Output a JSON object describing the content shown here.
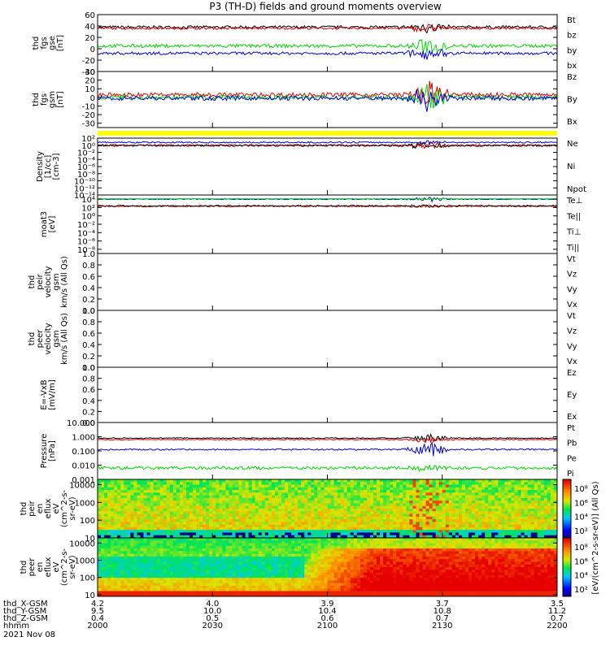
{
  "title": "P3 (TH-D) fields and ground moments overview",
  "colors": {
    "black": "#000000",
    "red": "#e00000",
    "green": "#00d800",
    "blue": "#0000e0",
    "yellow": "#ffff00"
  },
  "chart_data": [
    {
      "type": "line",
      "ylabel": [
        "thd",
        "fgs",
        "gse",
        "[nT]"
      ],
      "ylim": [
        -40,
        60
      ],
      "yticks": [
        "60",
        "40",
        "20",
        "0",
        "-20",
        "-40"
      ],
      "yticks_v": [
        60,
        40,
        20,
        0,
        -20,
        -40
      ],
      "scale": "linear",
      "series": [
        {
          "name": "Bt",
          "color": "black",
          "base": 38,
          "noise": 2.5,
          "burst": 10
        },
        {
          "name": "bz",
          "color": "red",
          "base": 36,
          "noise": 2,
          "burst": 8
        },
        {
          "name": "by",
          "color": "green",
          "base": 5,
          "noise": 3,
          "burst": 15
        },
        {
          "name": "bx",
          "color": "blue",
          "base": -8,
          "noise": 2.5,
          "burst": 10
        }
      ]
    },
    {
      "type": "line",
      "ylabel": [
        "thd",
        "fgs",
        "gsm",
        "[nT]"
      ],
      "ylim": [
        -35,
        30
      ],
      "yticks": [
        "30",
        "20",
        "10",
        "0",
        "-10",
        "-20",
        "-30"
      ],
      "yticks_v": [
        30,
        20,
        10,
        0,
        -10,
        -20,
        -30
      ],
      "scale": "linear",
      "series": [
        {
          "name": "Bz",
          "color": "red",
          "base": 3,
          "noise": 2.5,
          "burst": 15
        },
        {
          "name": "By",
          "color": "green",
          "base": 0,
          "noise": 2.5,
          "burst": 15
        },
        {
          "name": "Bx",
          "color": "blue",
          "base": -1,
          "noise": 2.5,
          "burst": 15
        }
      ]
    },
    {
      "type": "bar",
      "ylabel": [],
      "note": "flag bar",
      "color": "yellow"
    },
    {
      "type": "line",
      "ylabel": [
        "Density",
        "[1/cc]",
        "[cm-3]"
      ],
      "ylim": [
        -14,
        2
      ],
      "yticks": [
        "10²",
        "10⁰",
        "10⁻²",
        "10⁻⁴",
        "10⁻⁶",
        "10⁻⁸",
        "10⁻¹⁰",
        "10⁻¹²",
        "10⁻¹⁴"
      ],
      "yticks_v": [
        2,
        0,
        -2,
        -4,
        -6,
        -8,
        -10,
        -12,
        -14
      ],
      "scale": "log",
      "series": [
        {
          "name": "Ne",
          "color": "red",
          "base": 0,
          "noise": 0.25,
          "burst": 1
        },
        {
          "name": "Ni",
          "color": "black",
          "base": -0.1,
          "noise": 0.25,
          "burst": 1
        },
        {
          "name": "Npot",
          "color": "blue",
          "base": 0.8,
          "noise": 0.2,
          "burst": 0.5
        }
      ]
    },
    {
      "type": "line",
      "ylabel": [
        "moat3",
        "[eV]"
      ],
      "ylim": [
        -9,
        5
      ],
      "yticks": [
        "10⁴",
        "10²",
        "10⁰",
        "10⁻²",
        "10⁻⁴",
        "10⁻⁶",
        "10⁻⁸"
      ],
      "yticks_v": [
        4,
        2,
        0,
        -2,
        -4,
        -6,
        -8
      ],
      "scale": "log",
      "series": [
        {
          "name": "Te⊥",
          "color": "red",
          "base": 2.3,
          "noise": 0.15,
          "burst": 0.4
        },
        {
          "name": "Te||",
          "color": "black",
          "base": 2.4,
          "noise": 0.15,
          "burst": 0.4
        },
        {
          "name": "Ti⊥",
          "color": "blue",
          "base": 4.0,
          "noise": 0.1,
          "burst": 0.6
        },
        {
          "name": "Ti||",
          "color": "green",
          "base": 4.1,
          "noise": 0.05,
          "burst": 0.2
        }
      ]
    },
    {
      "type": "line",
      "ylabel": [
        "thd",
        "peir",
        "velocity",
        "gsm",
        "km/s (All Qs)"
      ],
      "ylim": [
        0,
        1
      ],
      "yticks": [
        "1.0",
        "0.8",
        "0.6",
        "0.4",
        "0.2",
        "0.0"
      ],
      "yticks_v": [
        1,
        0.8,
        0.6,
        0.4,
        0.2,
        0
      ],
      "scale": "linear",
      "series": [
        {
          "name": "Vt",
          "color": "black"
        },
        {
          "name": "Vz",
          "color": "red"
        },
        {
          "name": "Vy",
          "color": "green"
        },
        {
          "name": "Vx",
          "color": "blue"
        }
      ]
    },
    {
      "type": "line",
      "ylabel": [
        "thd",
        "peer",
        "velocity",
        "gsm",
        "km/s (All Qs)"
      ],
      "ylim": [
        0,
        1
      ],
      "yticks": [
        "1.0",
        "0.8",
        "0.6",
        "0.4",
        "0.2",
        "0.0"
      ],
      "yticks_v": [
        1,
        0.8,
        0.6,
        0.4,
        0.2,
        0
      ],
      "scale": "linear",
      "series": [
        {
          "name": "Vt",
          "color": "black"
        },
        {
          "name": "Vz",
          "color": "red"
        },
        {
          "name": "Vy",
          "color": "green"
        },
        {
          "name": "Vx",
          "color": "blue"
        }
      ]
    },
    {
      "type": "line",
      "ylabel": [
        "E=-VxB",
        "[mV/m]"
      ],
      "ylim": [
        0,
        1
      ],
      "yticks": [
        "1.0",
        "0.8",
        "0.6",
        "0.4",
        "0.2",
        "0.0"
      ],
      "yticks_v": [
        1,
        0.8,
        0.6,
        0.4,
        0.2,
        0
      ],
      "scale": "linear",
      "series": [
        {
          "name": "Ez",
          "color": "red"
        },
        {
          "name": "Ey",
          "color": "green"
        },
        {
          "name": "Ex",
          "color": "blue"
        }
      ]
    },
    {
      "type": "line",
      "ylabel": [
        "Pressure",
        "[nPa]"
      ],
      "ylim": [
        -3,
        1
      ],
      "yticks": [
        "10.000",
        "1.000",
        "0.100",
        "0.010",
        "0.001"
      ],
      "yticks_v": [
        1,
        0,
        -1,
        -2,
        -3
      ],
      "scale": "log",
      "series": [
        {
          "name": "Pt",
          "color": "black",
          "base": -0.1,
          "noise": 0.04,
          "burst": 0.3
        },
        {
          "name": "Pb",
          "color": "red",
          "base": -0.2,
          "noise": 0.04,
          "burst": 0.25
        },
        {
          "name": "Pe",
          "color": "green",
          "base": -2.2,
          "noise": 0.1,
          "burst": 0.3
        },
        {
          "name": "Pi",
          "color": "blue",
          "base": -0.9,
          "noise": 0.05,
          "burst": 0.6
        }
      ]
    },
    {
      "type": "heatmap",
      "ylabel": [
        "thd",
        "peir",
        "en",
        "eflux",
        "eV",
        "(cm^2-s-",
        "sr-eV)"
      ],
      "ylim": [
        1,
        4.3
      ],
      "yticks": [
        "10000",
        "1000",
        "100",
        "10"
      ],
      "yticks_v": [
        4,
        3,
        2,
        1
      ],
      "scale": "log",
      "colorbar_ticks": [
        "10⁸",
        "10⁶",
        "10⁴",
        "10²"
      ]
    },
    {
      "type": "heatmap",
      "ylabel": [
        "thd",
        "peer",
        "en",
        "eflux",
        "eV",
        "(cm^2-s-",
        "sr-eV)"
      ],
      "ylim": [
        0.9,
        4.3
      ],
      "yticks": [
        "10000",
        "1000",
        "100",
        "10"
      ],
      "yticks_v": [
        4,
        3,
        2,
        1
      ],
      "scale": "log",
      "colorbar_ticks": [
        "10⁸",
        "10⁶",
        "10⁴",
        "10²"
      ]
    }
  ],
  "colorbar_label": "[eV/(cm^2-s-sr-eV)] (All Qs)",
  "x_axis": {
    "rows": [
      {
        "name": "thd_X-GSM",
        "values": [
          "4.2",
          "4.0",
          "3.9",
          "3.7",
          "3.5"
        ]
      },
      {
        "name": "thd_Y-GSM",
        "values": [
          "9.5",
          "10.0",
          "10.4",
          "10.8",
          "11.2"
        ]
      },
      {
        "name": "thd_Z-GSM",
        "values": [
          "0.4",
          "0.5",
          "0.6",
          "0.7",
          "0.7"
        ]
      },
      {
        "name": "hhmm",
        "values": [
          "2000",
          "2030",
          "2100",
          "2130",
          "2200"
        ]
      }
    ],
    "date": "2021 Nov 08"
  }
}
